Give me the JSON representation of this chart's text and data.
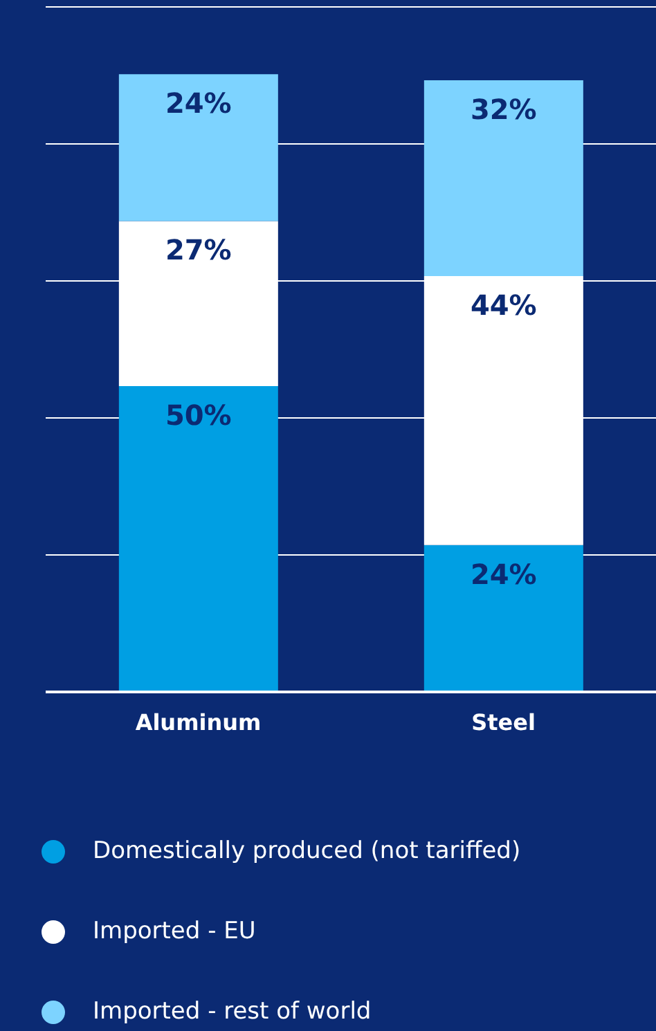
{
  "chart_data": {
    "type": "bar",
    "stacked": true,
    "categories": [
      "Aluminum",
      "Steel"
    ],
    "series": [
      {
        "name": "Domestically produced (not tariffed)",
        "color": "#009fe3",
        "values": [
          50,
          24
        ],
        "value_labels": [
          "50%",
          "24%"
        ]
      },
      {
        "name": "Imported - EU",
        "color": "#ffffff",
        "values": [
          27,
          44
        ],
        "value_labels": [
          "27%",
          "44%"
        ]
      },
      {
        "name": "Imported - rest of world",
        "color": "#7dd3ff",
        "values": [
          24,
          32
        ],
        "value_labels": [
          "24%",
          "32%"
        ]
      }
    ],
    "ylim": [
      0,
      112
    ],
    "yticks": [
      {
        "value": 0,
        "label": null
      },
      {
        "value": 22.4,
        "label": null
      },
      {
        "value": 44.8,
        "label": null
      },
      {
        "value": 67.2,
        "label": null
      },
      {
        "value": 89.6,
        "label": null
      },
      {
        "value": 112,
        "label": null
      }
    ],
    "grid": "y",
    "tick_labels": "x",
    "legend": "bottom"
  }
}
